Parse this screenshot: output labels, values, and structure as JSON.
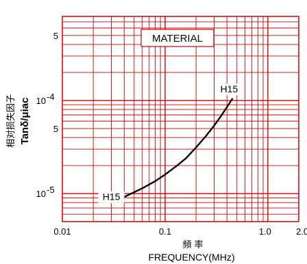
{
  "chart_data": {
    "type": "line",
    "title": "MATERIAL",
    "xlabel_cn": "頻 率",
    "xlabel": "FREQUENCY(MHz)",
    "ylabel_cn": "相对损失因子",
    "ylabel": "Tanδ/μiac",
    "x_scale": "log",
    "y_scale": "log",
    "xlim": [
      0.01,
      2.0
    ],
    "ylim": [
      5e-06,
      0.0008
    ],
    "grid": true,
    "grid_color": "#cc0000",
    "line_color": "#000000",
    "x_ticks": [
      {
        "value": 0.01,
        "label": "0.01"
      },
      {
        "value": 0.1,
        "label": "0.1"
      },
      {
        "value": 1.0,
        "label": "1.0"
      },
      {
        "value": 2.0,
        "label": "2.0"
      }
    ],
    "y_ticks": [
      {
        "value": 1e-05,
        "base": "10",
        "exp": "-5"
      },
      {
        "value": 5e-05,
        "base": "5",
        "exp": ""
      },
      {
        "value": 0.0001,
        "base": "10",
        "exp": "-4"
      },
      {
        "value": 0.0005,
        "base": "5",
        "exp": ""
      }
    ],
    "series": [
      {
        "name": "H15",
        "x": [
          0.04,
          0.06,
          0.08,
          0.1,
          0.13,
          0.16,
          0.2,
          0.25,
          0.3,
          0.35,
          0.4,
          0.45
        ],
        "y": [
          9.2e-06,
          1.14e-05,
          1.36e-05,
          1.6e-05,
          1.99e-05,
          2.4e-05,
          3.13e-05,
          4.16e-05,
          5.37e-05,
          6.8e-05,
          8.5e-05,
          0.000104
        ]
      }
    ],
    "annotations": [
      {
        "text": "H15",
        "x": 0.03,
        "y": 8.5e-06
      },
      {
        "text": "H15",
        "x": 0.42,
        "y": 0.000122
      }
    ]
  }
}
